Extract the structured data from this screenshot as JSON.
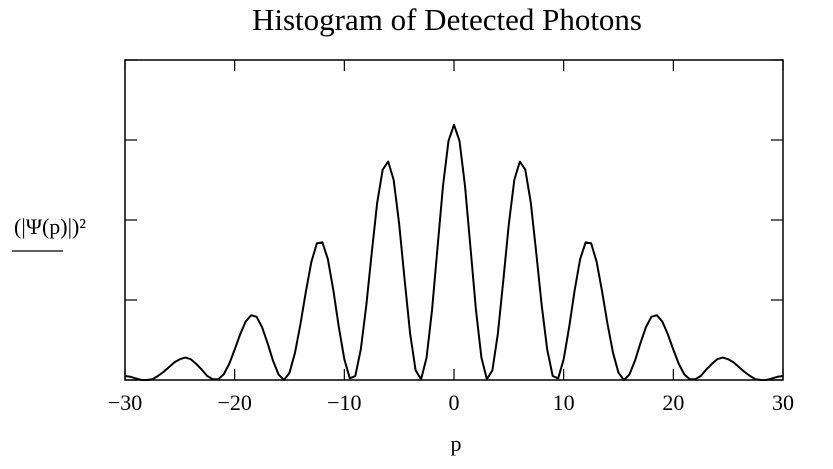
{
  "chart_data": {
    "type": "line",
    "title": "Histogram of Detected Photons",
    "xlabel": "p",
    "ylabel": "(|Ψ(p)|)²",
    "x": [
      -30,
      -29.5,
      -29,
      -28.5,
      -28,
      -27.5,
      -27,
      -26.5,
      -26,
      -25.5,
      -25,
      -24.5,
      -24,
      -23.5,
      -23,
      -22.5,
      -22,
      -21.5,
      -21,
      -20.5,
      -20,
      -19.5,
      -19,
      -18.5,
      -18,
      -17.5,
      -17,
      -16.5,
      -16,
      -15.5,
      -15,
      -14.5,
      -14,
      -13.5,
      -13,
      -12.5,
      -12,
      -11.5,
      -11,
      -10.5,
      -10,
      -9.5,
      -9,
      -8.5,
      -8,
      -7.5,
      -7,
      -6.5,
      -6,
      -5.5,
      -5,
      -4.5,
      -4,
      -3.5,
      -3,
      -2.5,
      -2,
      -1.5,
      -1,
      -0.5,
      0,
      0.5,
      1,
      1.5,
      2,
      2.5,
      3,
      3.5,
      4,
      4.5,
      5,
      5.5,
      6,
      6.5,
      7,
      7.5,
      8,
      8.5,
      9,
      9.5,
      10,
      10.5,
      11,
      11.5,
      12,
      12.5,
      13,
      13.5,
      14,
      14.5,
      15,
      15.5,
      16,
      16.5,
      17,
      17.5,
      18,
      18.5,
      19,
      19.5,
      20,
      20.5,
      21,
      21.5,
      22,
      22.5,
      23,
      23.5,
      24,
      24.5,
      25,
      25.5,
      26,
      26.5,
      27,
      27.5,
      28,
      28.5,
      29,
      29.5,
      30
    ],
    "series": [
      {
        "color": "#000000",
        "values": [
          0.05,
          0.04,
          0.02,
          0.0,
          0.0,
          0.01,
          0.05,
          0.1,
          0.16,
          0.22,
          0.26,
          0.28,
          0.26,
          0.2,
          0.13,
          0.05,
          0.01,
          0.01,
          0.07,
          0.2,
          0.38,
          0.57,
          0.73,
          0.81,
          0.79,
          0.66,
          0.46,
          0.24,
          0.07,
          0.0,
          0.09,
          0.34,
          0.7,
          1.11,
          1.48,
          1.71,
          1.72,
          1.51,
          1.12,
          0.66,
          0.26,
          0.02,
          0.05,
          0.38,
          0.93,
          1.59,
          2.22,
          2.63,
          2.73,
          2.5,
          1.95,
          1.25,
          0.58,
          0.12,
          0.01,
          0.28,
          0.88,
          1.66,
          2.43,
          2.99,
          3.19,
          2.99,
          2.43,
          1.66,
          0.88,
          0.28,
          0.01,
          0.12,
          0.58,
          1.25,
          1.95,
          2.5,
          2.73,
          2.63,
          2.22,
          1.59,
          0.93,
          0.38,
          0.05,
          0.02,
          0.26,
          0.66,
          1.12,
          1.51,
          1.72,
          1.71,
          1.48,
          1.11,
          0.7,
          0.34,
          0.09,
          0.0,
          0.07,
          0.24,
          0.46,
          0.66,
          0.79,
          0.81,
          0.73,
          0.57,
          0.38,
          0.2,
          0.07,
          0.01,
          0.01,
          0.05,
          0.13,
          0.2,
          0.26,
          0.28,
          0.26,
          0.22,
          0.16,
          0.1,
          0.05,
          0.01,
          0.0,
          0.0,
          0.02,
          0.04,
          0.05
        ]
      }
    ],
    "xlim": [
      -30,
      30
    ],
    "xticks": [
      {
        "value": -30,
        "label": "−30"
      },
      {
        "value": -20,
        "label": "−20"
      },
      {
        "value": -10,
        "label": "−10"
      },
      0,
      10,
      20,
      30
    ],
    "ylim": [
      0,
      4
    ],
    "yticks": [
      0,
      1,
      2,
      3,
      4
    ],
    "grid": false
  }
}
